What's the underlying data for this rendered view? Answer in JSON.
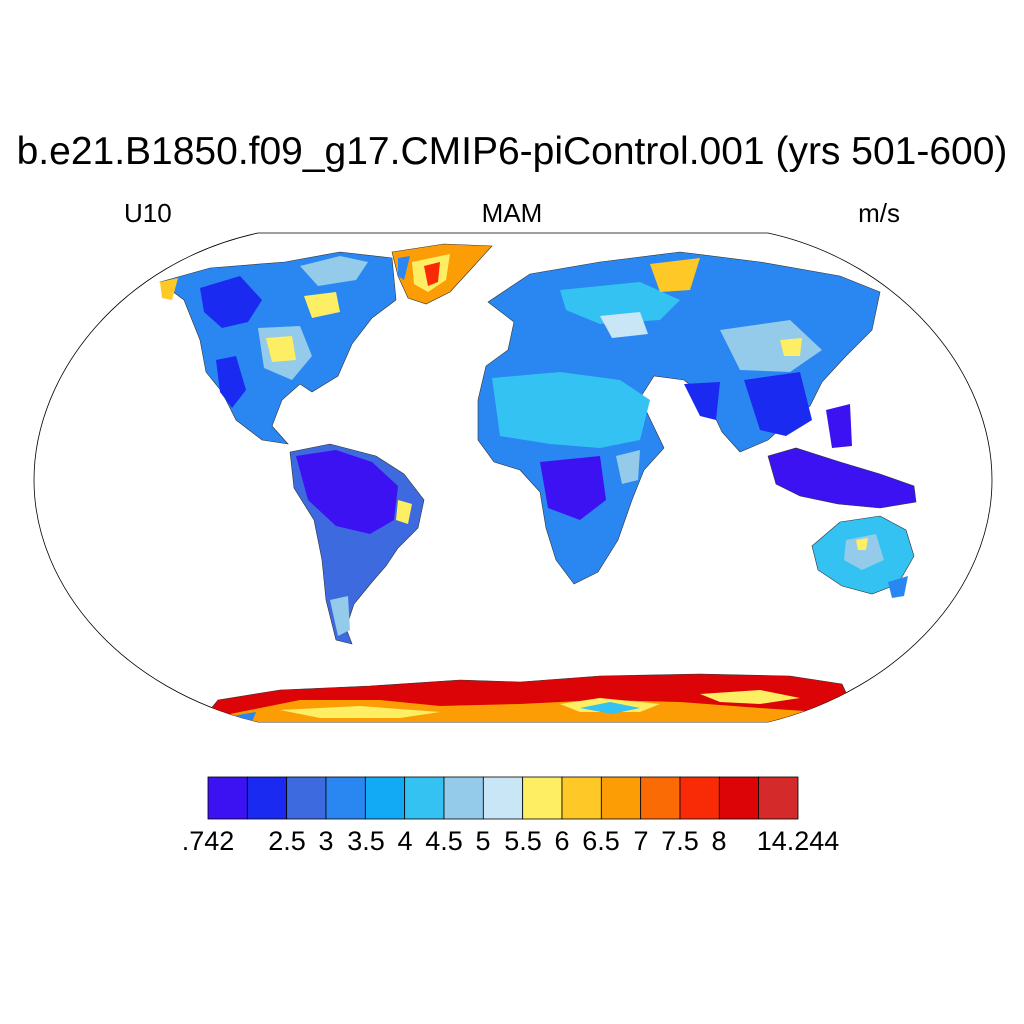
{
  "title": "b.e21.B1850.f09_g17.CMIP6-piControl.001 (yrs 501-600)",
  "subtitle_left": "U10",
  "subtitle_center": "MAM",
  "subtitle_right": "m/s",
  "colorbar": {
    "colors": [
      "#3d12f2",
      "#1b2af0",
      "#3e6ae0",
      "#2a87f2",
      "#12a9f5",
      "#33c2f2",
      "#94cbea",
      "#c9e6f7",
      "#fdee63",
      "#fec926",
      "#fc9d05",
      "#fa6b06",
      "#f92b07",
      "#dd0407",
      "#d42a2a"
    ],
    "labels": [
      ".742",
      "2.5",
      "3",
      "3.5",
      "4",
      "4.5",
      "5",
      "5.5",
      "6",
      "6.5",
      "7",
      "7.5",
      "8",
      "14.244"
    ]
  }
}
